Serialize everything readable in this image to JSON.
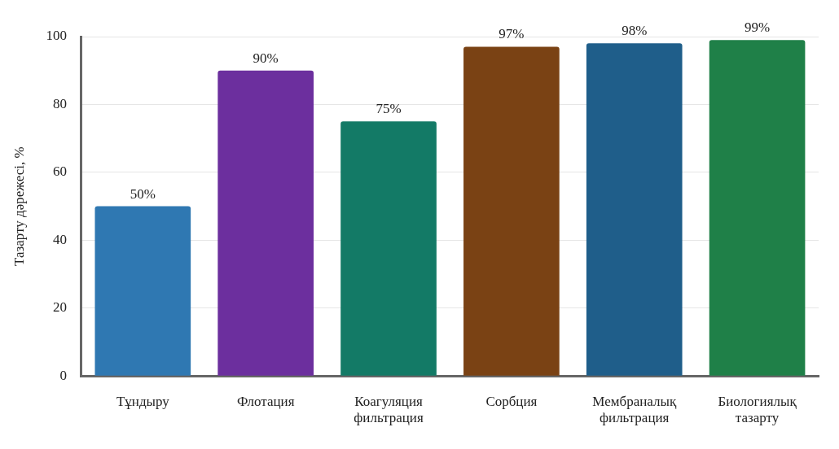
{
  "chart_data": {
    "type": "bar",
    "ylabel": "Тазарту дәрежесі, %",
    "categories": [
      "Тұндыру",
      "Флотация",
      "Коагуляция фильтрация",
      "Сорбция",
      "Мембраналық фильтрация",
      "Биологиялық тазарту"
    ],
    "values": [
      50,
      90,
      75,
      97,
      98,
      99
    ],
    "colors": [
      "#2f78b2",
      "#6c2f9e",
      "#137a66",
      "#7a4214",
      "#1f5e8a",
      "#1f8048"
    ],
    "value_labels": [
      "50%",
      "90%",
      "75%",
      "97%",
      "98%",
      "99%"
    ],
    "ylim": [
      0,
      100
    ],
    "yticks": [
      0,
      20,
      40,
      60,
      80,
      100
    ],
    "grid": "y",
    "legend": false
  }
}
